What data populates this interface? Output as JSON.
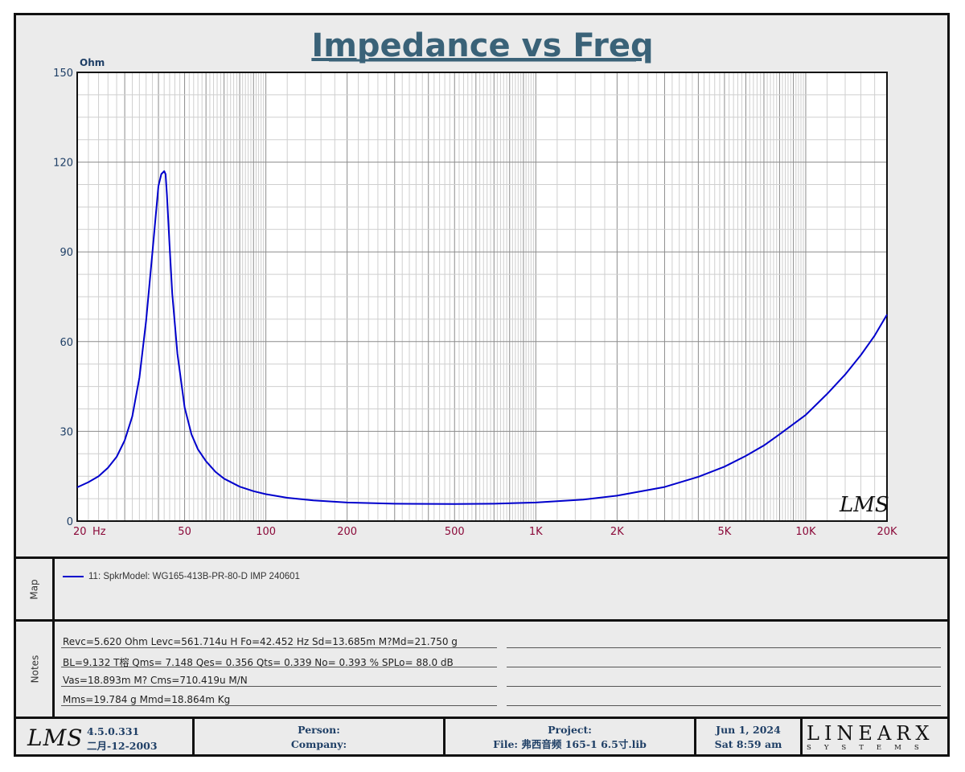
{
  "chart_data": {
    "type": "line",
    "title": "Impedance vs Freq",
    "ylabel": "Ohm",
    "xlabel": "Hz",
    "xscale": "log",
    "xlim": [
      20,
      20000
    ],
    "ylim": [
      0,
      150
    ],
    "grid": true,
    "y_ticks": [
      "0",
      "30",
      "60",
      "90",
      "120",
      "150"
    ],
    "y_tick_values": [
      0,
      30,
      60,
      90,
      120,
      150
    ],
    "x_ticks": [
      "20",
      "50",
      "100",
      "200",
      "500",
      "1K",
      "2K",
      "5K",
      "10K",
      "20K"
    ],
    "x_tick_values": [
      20,
      50,
      100,
      200,
      500,
      1000,
      2000,
      5000,
      10000,
      20000
    ],
    "x_unit_label": "Hz",
    "watermark": "LMS",
    "series": [
      {
        "name": "11: SpkrModel: WG165-413B-PR-80-D IMP 240601",
        "color": "#0000cc",
        "x": [
          20,
          22,
          24,
          26,
          28,
          30,
          32,
          34,
          36,
          38,
          40,
          41,
          42,
          42.5,
          43,
          44,
          45,
          47,
          50,
          53,
          56,
          60,
          65,
          70,
          80,
          90,
          100,
          120,
          150,
          200,
          300,
          500,
          700,
          1000,
          1500,
          2000,
          3000,
          4000,
          5000,
          6000,
          7000,
          8000,
          10000,
          12000,
          14000,
          16000,
          18000,
          20000
        ],
        "y": [
          11.3,
          13,
          15,
          17.8,
          21.5,
          27,
          35,
          48,
          67,
          90,
          112,
          116,
          117,
          116,
          109,
          92,
          76,
          56,
          38,
          29,
          24,
          20,
          16.5,
          14.2,
          11.5,
          10,
          9,
          7.8,
          6.9,
          6.2,
          5.8,
          5.7,
          5.8,
          6.2,
          7.2,
          8.5,
          11.4,
          14.8,
          18.2,
          21.8,
          25.3,
          29,
          35.5,
          42.5,
          49,
          55.5,
          62,
          69
        ]
      }
    ]
  },
  "map": {
    "label": "Map",
    "entry": "11: SpkrModel: WG165-413B-PR-80-D IMP 240601"
  },
  "notes": {
    "label": "Notes",
    "lines": [
      "Revc=5.620 Ohm  Levc=561.714u H  Fo=42.452 Hz  Sd=13.685m M?Md=21.750 g",
      "BL=9.132 T榕  Qms= 7.148  Qes= 0.356  Qts= 0.339  No= 0.393 %  SPLo= 88.0 dB",
      "Vas=18.893m M? Cms=710.419u M/N",
      "Mms=19.784 g  Mmd=18.864m Kg"
    ]
  },
  "footer": {
    "logo": "LMS",
    "version": "4.5.0.331",
    "build_date": "二月-12-2003",
    "person": "Person:",
    "company": "Company:",
    "project": "Project:",
    "file": "File: 弗西音频 165-1 6.5寸.lib",
    "date": "Jun  1, 2024",
    "time": "Sat  8:59 am",
    "brand": "LINEARX",
    "brand_sub": "SYSTEMS"
  },
  "colors": {
    "title": "#3a6278",
    "axis_text": "#1f3f66",
    "x_tick_text": "#8b0a3a",
    "curve": "#0000cc",
    "grid": "#a8a8a8",
    "frame_bg": "#ebebeb"
  }
}
